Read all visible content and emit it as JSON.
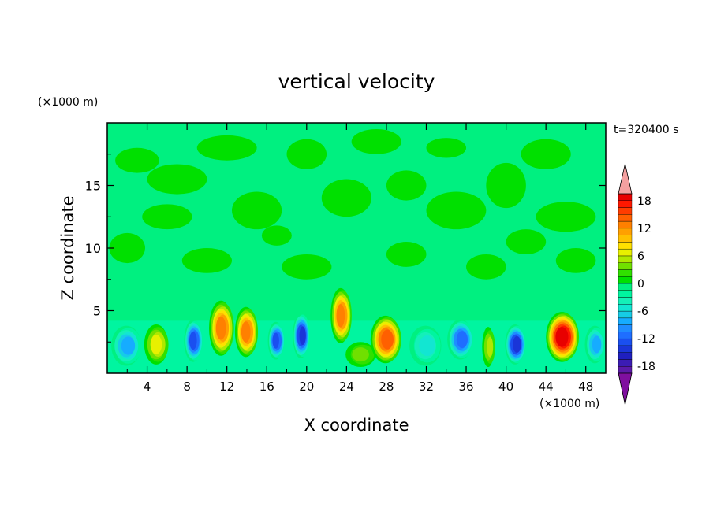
{
  "chart_data": {
    "type": "heatmap",
    "title": "vertical velocity",
    "time_label": "t=320400 s",
    "xlabel": "X coordinate",
    "ylabel": "Z coordinate",
    "x_unit": "(×1000 m)",
    "y_unit": "(×1000 m)",
    "xlim": [
      0,
      50
    ],
    "ylim": [
      0,
      20
    ],
    "x_ticks": [
      4,
      8,
      12,
      16,
      20,
      24,
      28,
      32,
      36,
      40,
      44,
      48
    ],
    "y_ticks": [
      5,
      10,
      15
    ],
    "colorbar": {
      "levels": [
        -21,
        -19.5,
        -18,
        -16.5,
        -15,
        -13.5,
        -12,
        -10.5,
        -9,
        -7.5,
        -6,
        -4.5,
        -3,
        -1.5,
        0,
        1.5,
        3,
        4.5,
        6,
        7.5,
        9,
        10.5,
        12,
        13.5,
        15,
        16.5,
        18,
        19.5,
        21
      ],
      "tick_labels": [
        "18",
        "12",
        "6",
        "0",
        "-6",
        "-12",
        "-18"
      ],
      "tick_values": [
        18,
        12,
        6,
        0,
        -6,
        -12,
        -18
      ],
      "extend": "both"
    },
    "background_levels": {
      "upper": 0,
      "lower": -1.5
    },
    "cells": [
      {
        "x": 5.0,
        "z": 2.3,
        "w": 6,
        "sx": 1.2,
        "sz": 1.6
      },
      {
        "x": 8.7,
        "z": 2.6,
        "w": -12,
        "sx": 0.9,
        "sz": 1.7
      },
      {
        "x": 11.5,
        "z": 3.6,
        "w": 12,
        "sx": 1.2,
        "sz": 2.2
      },
      {
        "x": 14.0,
        "z": 3.3,
        "w": 12,
        "sx": 1.1,
        "sz": 2.0
      },
      {
        "x": 17.0,
        "z": 2.6,
        "w": -12,
        "sx": 0.8,
        "sz": 1.5
      },
      {
        "x": 19.5,
        "z": 3.0,
        "w": -13.5,
        "sx": 0.8,
        "sz": 1.8
      },
      {
        "x": 23.5,
        "z": 4.6,
        "w": 12,
        "sx": 1.0,
        "sz": 2.2
      },
      {
        "x": 25.5,
        "z": 1.5,
        "w": 3,
        "sx": 1.5,
        "sz": 1.0
      },
      {
        "x": 28.0,
        "z": 2.7,
        "w": 13.5,
        "sx": 1.5,
        "sz": 1.9
      },
      {
        "x": 35.5,
        "z": 2.7,
        "w": -10.5,
        "sx": 1.3,
        "sz": 1.6
      },
      {
        "x": 38.3,
        "z": 2.1,
        "w": 4.5,
        "sx": 0.6,
        "sz": 1.6
      },
      {
        "x": 41.0,
        "z": 2.3,
        "w": -13.5,
        "sx": 1.0,
        "sz": 1.6
      },
      {
        "x": 45.7,
        "z": 2.9,
        "w": 18,
        "sx": 1.6,
        "sz": 2.0
      },
      {
        "x": 2.0,
        "z": 2.2,
        "w": -7.5,
        "sx": 1.5,
        "sz": 1.6
      },
      {
        "x": 32.0,
        "z": 2.2,
        "w": -4.5,
        "sx": 1.6,
        "sz": 1.6
      },
      {
        "x": 49.0,
        "z": 2.3,
        "w": -7.5,
        "sx": 1.0,
        "sz": 1.5
      }
    ]
  }
}
